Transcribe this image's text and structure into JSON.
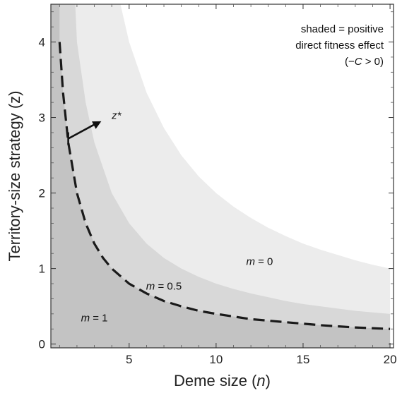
{
  "chart_data": {
    "type": "area",
    "xlabel": "Deme size (n)",
    "ylabel": "Territory-size strategy (z)",
    "xlim": [
      0.5,
      20.2
    ],
    "ylim": [
      -0.05,
      4.5
    ],
    "xticks": [
      5,
      10,
      15,
      20
    ],
    "yticks": [
      0,
      1,
      2,
      3,
      4
    ],
    "grid": false,
    "regions": [
      {
        "name": "m = 0",
        "label_text": "m = 0",
        "color": "#ececec",
        "label_at": {
          "x": 12.5,
          "y": 1.05
        },
        "boundary": {
          "x": [
            4.5,
            5,
            6,
            7,
            8,
            9,
            10,
            11,
            12,
            13,
            14,
            15,
            16,
            17,
            18,
            19,
            20
          ],
          "y": [
            4.5,
            4.0,
            3.33,
            2.86,
            2.5,
            2.22,
            2.0,
            1.82,
            1.67,
            1.54,
            1.43,
            1.33,
            1.25,
            1.18,
            1.11,
            1.05,
            1.0
          ]
        }
      },
      {
        "name": "m = 0.5",
        "label_text": "m = 0.5",
        "color": "#d8d8d8",
        "label_at": {
          "x": 7.0,
          "y": 0.72
        },
        "boundary": {
          "x": [
            1.9,
            2,
            2.5,
            3,
            4,
            5,
            6,
            7,
            8,
            9,
            10,
            11,
            12,
            13,
            14,
            15,
            16,
            17,
            18,
            19,
            20
          ],
          "y": [
            4.5,
            4.0,
            3.2,
            2.67,
            2.0,
            1.6,
            1.33,
            1.14,
            1.0,
            0.89,
            0.8,
            0.73,
            0.67,
            0.62,
            0.57,
            0.53,
            0.5,
            0.47,
            0.44,
            0.42,
            0.4
          ]
        }
      },
      {
        "name": "m = 1",
        "label_text": "m = 1",
        "color": "#c3c3c3",
        "label_at": {
          "x": 3.0,
          "y": 0.3
        },
        "boundary": {
          "x": [
            0.5,
            20
          ],
          "y": [
            4.5,
            4.5
          ]
        }
      }
    ],
    "series": [
      {
        "name": "z*",
        "style": "dashed",
        "color": "#1a1a1a",
        "x": [
          1,
          1.2,
          1.5,
          2,
          2.5,
          3,
          3.5,
          4,
          5,
          6,
          7,
          8,
          9,
          10,
          12,
          14,
          16,
          18,
          20
        ],
        "y": [
          4.0,
          3.33,
          2.67,
          2.0,
          1.6,
          1.33,
          1.14,
          1.0,
          0.8,
          0.67,
          0.57,
          0.5,
          0.44,
          0.4,
          0.33,
          0.29,
          0.25,
          0.22,
          0.2
        ]
      }
    ],
    "annotations": [
      {
        "id": "zstar",
        "text": "z*",
        "arrow_from": {
          "x": 1.5,
          "y": 2.72
        },
        "arrow_to": {
          "x": 3.4,
          "y": 2.95
        },
        "text_at": {
          "x": 4.0,
          "y": 2.98
        }
      }
    ],
    "legend_note": {
      "placement": "top-right",
      "lines": [
        "shaded = positive",
        "direct fitness effect",
        "(−C > 0)"
      ]
    }
  }
}
